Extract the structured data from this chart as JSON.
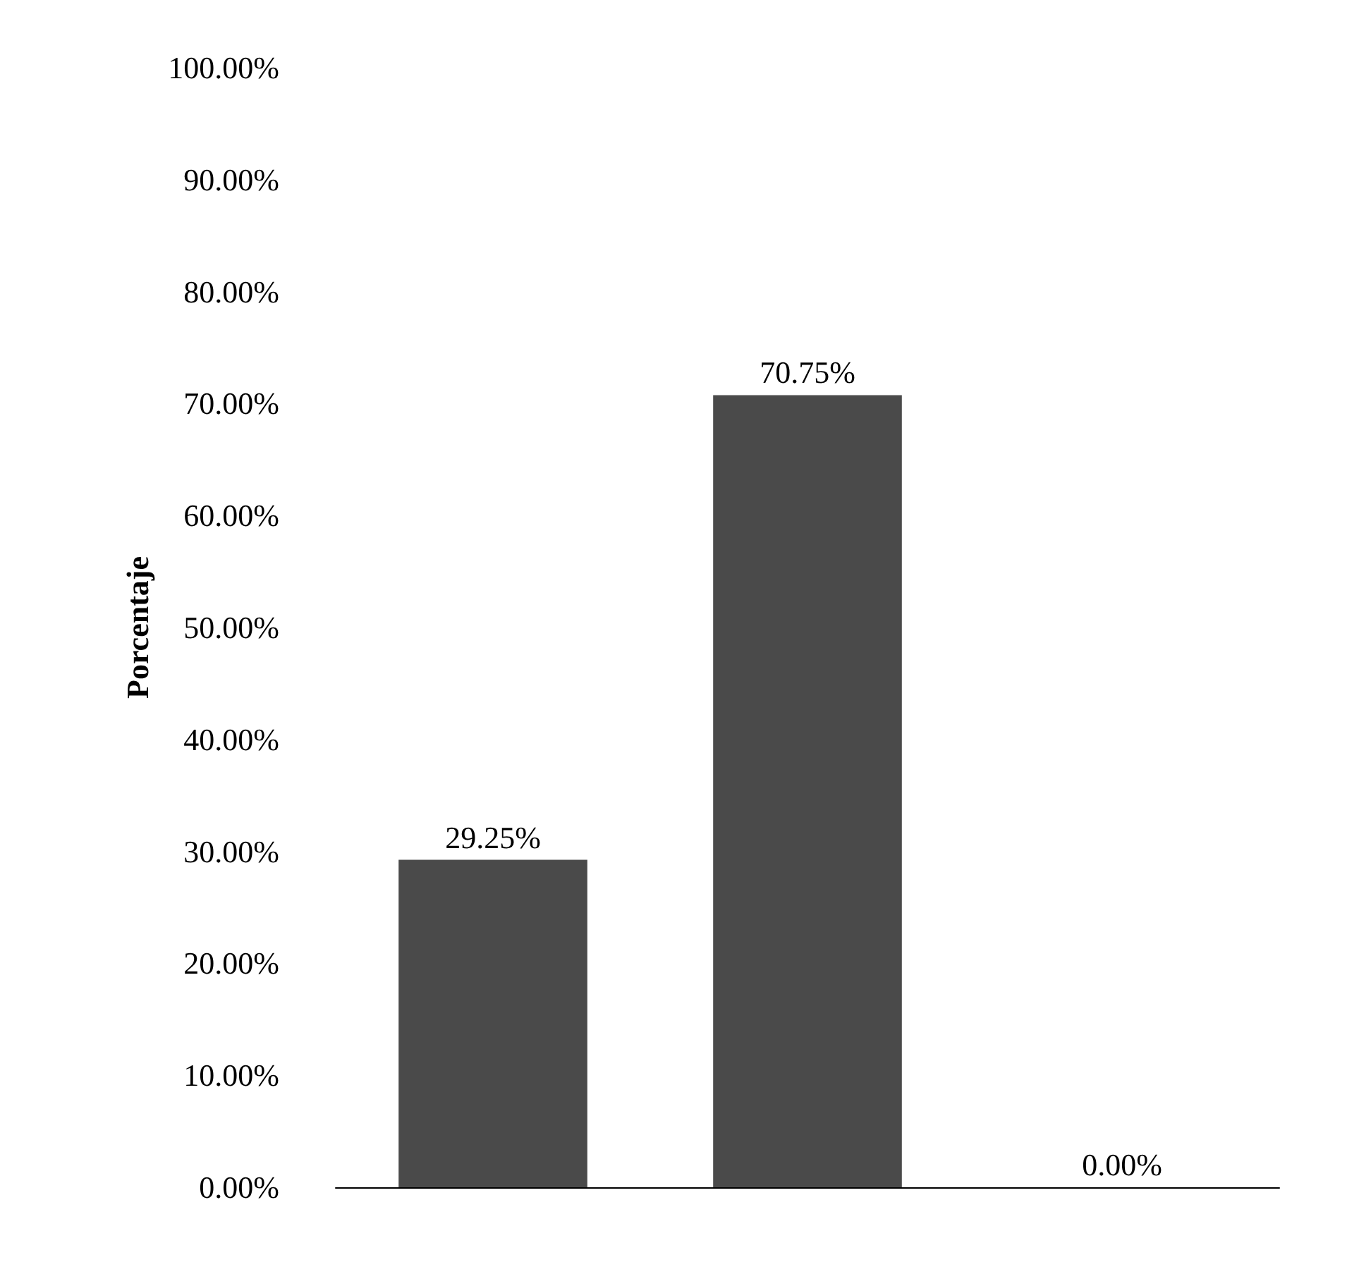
{
  "chart_data": {
    "type": "bar",
    "ylabel": "Porcentaje",
    "categories": [
      null,
      null,
      null
    ],
    "values": [
      29.25,
      70.75,
      0
    ],
    "value_labels": [
      "29.25%",
      "70.75%",
      "0.00%"
    ],
    "color": "#4a4a4a",
    "ylim": [
      0,
      100
    ],
    "yticks": [
      {
        "value": 0,
        "label": "0.00%"
      },
      {
        "value": 10,
        "label": "10.00%"
      },
      {
        "value": 20,
        "label": "20.00%"
      },
      {
        "value": 30,
        "label": "30.00%"
      },
      {
        "value": 40,
        "label": "40.00%"
      },
      {
        "value": 50,
        "label": "50.00%"
      },
      {
        "value": 60,
        "label": "60.00%"
      },
      {
        "value": 70,
        "label": "70.00%"
      },
      {
        "value": 80,
        "label": "80.00%"
      },
      {
        "value": 90,
        "label": "90.00%"
      },
      {
        "value": 100,
        "label": "100.00%"
      }
    ],
    "grid": false
  }
}
